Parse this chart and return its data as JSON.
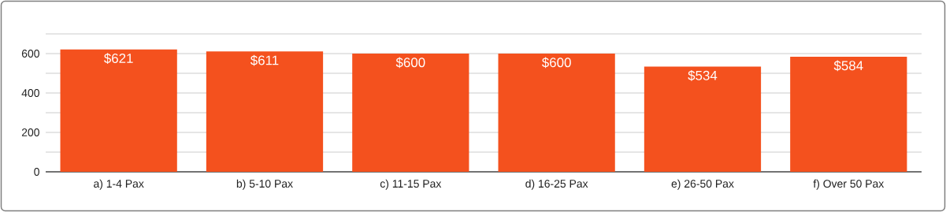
{
  "chart_data": {
    "type": "bar",
    "categories": [
      "a) 1-4 Pax",
      "b) 5-10 Pax",
      "c) 11-15 Pax",
      "d) 16-25 Pax",
      "e) 26-50 Pax",
      "f) Over 50 Pax"
    ],
    "values": [
      621,
      611,
      600,
      600,
      534,
      584
    ],
    "value_labels": [
      "$621",
      "$611",
      "$600",
      "$600",
      "$534",
      "$584"
    ],
    "color": "#f4511e",
    "ylim": [
      0,
      700
    ],
    "yticks": [
      0,
      {
        "value": 100,
        "label": null
      },
      200,
      {
        "value": 300,
        "label": null
      },
      400,
      {
        "value": 500,
        "label": null
      },
      600,
      {
        "value": 700,
        "label": null
      }
    ],
    "grid": true
  }
}
